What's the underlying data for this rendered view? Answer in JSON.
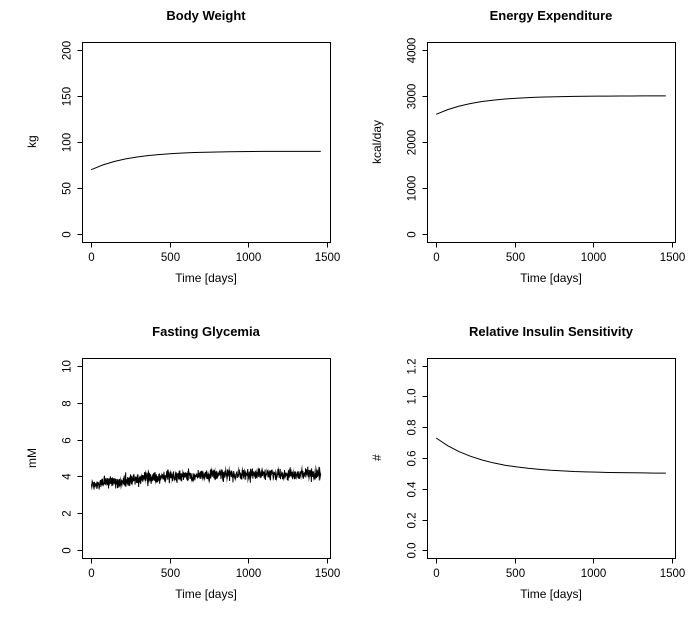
{
  "figure": {
    "background": "#ffffff",
    "foreground": "#000000"
  },
  "chart_data": [
    {
      "id": "body-weight",
      "type": "line",
      "title": "Body Weight",
      "xlabel": "Time [days]",
      "ylabel": "kg",
      "xrange": [
        -58.4,
        1518.4
      ],
      "yrange": [
        -8.3,
        208.3
      ],
      "xticks": [
        0,
        500,
        1000,
        1500
      ],
      "xtick_labels": [
        "0",
        "500",
        "1000",
        "1500"
      ],
      "yticks": [
        0,
        50,
        100,
        150,
        200
      ],
      "ytick_labels": [
        "0",
        "50",
        "100",
        "150",
        "200"
      ],
      "grid": false,
      "legend": null,
      "line_color": "#000000",
      "x": [
        0,
        73,
        146,
        219,
        292,
        365,
        438,
        511,
        584,
        657,
        730,
        803,
        876,
        949,
        1022,
        1095,
        1168,
        1241,
        1314,
        1387,
        1460
      ],
      "y": [
        70.0,
        75.1,
        78.9,
        81.7,
        83.8,
        85.4,
        86.5,
        87.4,
        88.1,
        88.6,
        88.9,
        89.2,
        89.4,
        89.6,
        89.7,
        89.8,
        89.8,
        89.9,
        89.9,
        89.9,
        89.9
      ]
    },
    {
      "id": "energy-expenditure",
      "type": "line",
      "title": "Energy Expenditure",
      "xlabel": "Time [days]",
      "ylabel": "kcal/day",
      "xrange": [
        -58.4,
        1518.4
      ],
      "yrange": [
        -166,
        4166
      ],
      "xticks": [
        0,
        500,
        1000,
        1500
      ],
      "xtick_labels": [
        "0",
        "500",
        "1000",
        "1500"
      ],
      "yticks": [
        0,
        1000,
        2000,
        3000,
        4000
      ],
      "ytick_labels": [
        "0",
        "1000",
        "2000",
        "3000",
        "4000"
      ],
      "grid": false,
      "legend": null,
      "line_color": "#000000",
      "x": [
        0,
        73,
        146,
        219,
        292,
        365,
        438,
        511,
        584,
        657,
        730,
        803,
        876,
        949,
        1022,
        1095,
        1168,
        1241,
        1314,
        1387,
        1460
      ],
      "y": [
        2600,
        2701,
        2777,
        2833,
        2876,
        2907,
        2931,
        2948,
        2961,
        2971,
        2978,
        2984,
        2988,
        2991,
        2993,
        2995,
        2996,
        2997,
        2998,
        2998,
        2999
      ]
    },
    {
      "id": "fasting-glycemia",
      "type": "line",
      "title": "Fasting Glycemia",
      "xlabel": "Time [days]",
      "ylabel": "mM",
      "xrange": [
        -58.4,
        1518.4
      ],
      "yrange": [
        -0.42,
        10.42
      ],
      "xticks": [
        0,
        500,
        1000,
        1500
      ],
      "xtick_labels": [
        "0",
        "500",
        "1000",
        "1500"
      ],
      "yticks": [
        0,
        2,
        4,
        6,
        8,
        10
      ],
      "ytick_labels": [
        "0",
        "2",
        "4",
        "6",
        "8",
        "10"
      ],
      "grid": false,
      "legend": null,
      "line_color": "#000000",
      "x": [
        0,
        73,
        146,
        219,
        292,
        365,
        438,
        511,
        584,
        657,
        730,
        803,
        876,
        949,
        1022,
        1095,
        1168,
        1241,
        1314,
        1387,
        1460
      ],
      "y": [
        3.5,
        3.61,
        3.7,
        3.77,
        3.84,
        3.89,
        3.93,
        3.97,
        4.0,
        4.02,
        4.05,
        4.06,
        4.08,
        4.09,
        4.1,
        4.11,
        4.12,
        4.12,
        4.13,
        4.13,
        4.13
      ],
      "noise": {
        "amplitude": 0.28,
        "distribution": "gaussian-approx",
        "samples": 900,
        "seed": 20240613
      }
    },
    {
      "id": "relative-insulin-sensitivity",
      "type": "line",
      "title": "Relative Insulin Sensitivity",
      "xlabel": "Time [days]",
      "ylabel": "#",
      "xrange": [
        -58.4,
        1518.4
      ],
      "yrange": [
        -0.05,
        1.25
      ],
      "xticks": [
        0,
        500,
        1000,
        1500
      ],
      "xtick_labels": [
        "0",
        "500",
        "1000",
        "1500"
      ],
      "yticks": [
        0,
        0.2,
        0.4,
        0.6,
        0.8,
        1.0,
        1.2
      ],
      "ytick_labels": [
        "0.0",
        "0.2",
        "0.4",
        "0.6",
        "0.8",
        "1.0",
        "1.2"
      ],
      "grid": false,
      "legend": null,
      "line_color": "#000000",
      "x": [
        0,
        73,
        146,
        219,
        292,
        365,
        438,
        511,
        584,
        657,
        730,
        803,
        876,
        949,
        1022,
        1095,
        1168,
        1241,
        1314,
        1387,
        1460
      ],
      "y": [
        0.73,
        0.68,
        0.641,
        0.611,
        0.587,
        0.568,
        0.553,
        0.542,
        0.533,
        0.526,
        0.52,
        0.516,
        0.512,
        0.51,
        0.508,
        0.506,
        0.505,
        0.504,
        0.503,
        0.502,
        0.502
      ]
    }
  ]
}
